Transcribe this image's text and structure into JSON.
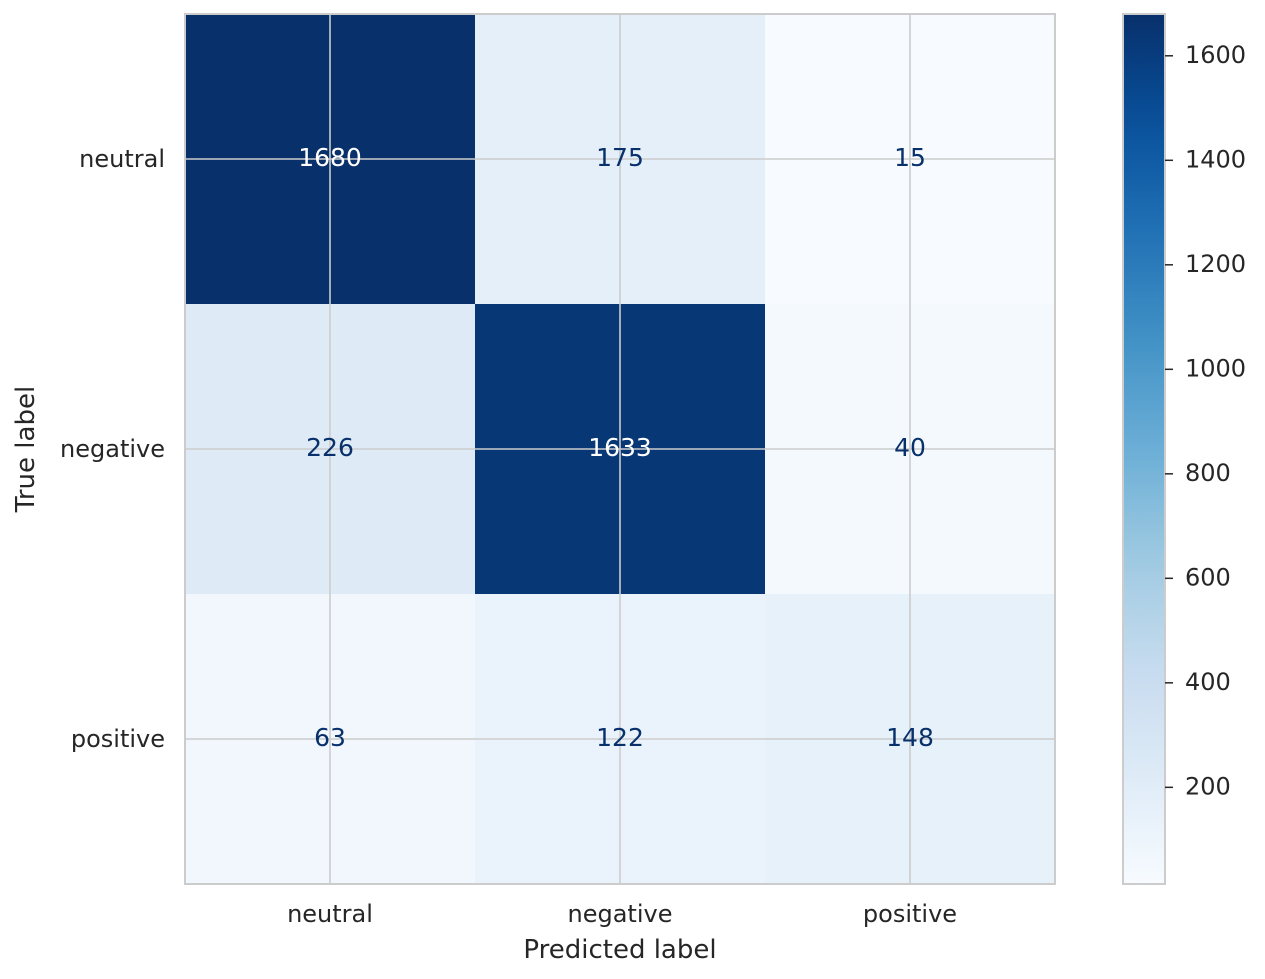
{
  "chart_data": {
    "type": "heatmap",
    "title": "",
    "xlabel": "Predicted label",
    "ylabel": "True label",
    "x_categories": [
      "neutral",
      "negative",
      "positive"
    ],
    "y_categories": [
      "neutral",
      "negative",
      "positive"
    ],
    "values": [
      [
        1680,
        175,
        15
      ],
      [
        226,
        1633,
        40
      ],
      [
        63,
        122,
        148
      ]
    ],
    "colormap": "Blues",
    "colorbar": {
      "min": 15,
      "max": 1680,
      "ticks": [
        200,
        400,
        600,
        800,
        1000,
        1200,
        1400,
        1600
      ],
      "tick_labels": [
        "200",
        "400",
        "600",
        "800",
        "1000",
        "1200",
        "1400",
        "1600"
      ]
    },
    "grid": true,
    "colors": {
      "axis_text": "#262626",
      "gridline": "#cccccc",
      "spine": "#cccccc",
      "dark_text": "#08306b",
      "light_text": "#ffffff"
    }
  }
}
